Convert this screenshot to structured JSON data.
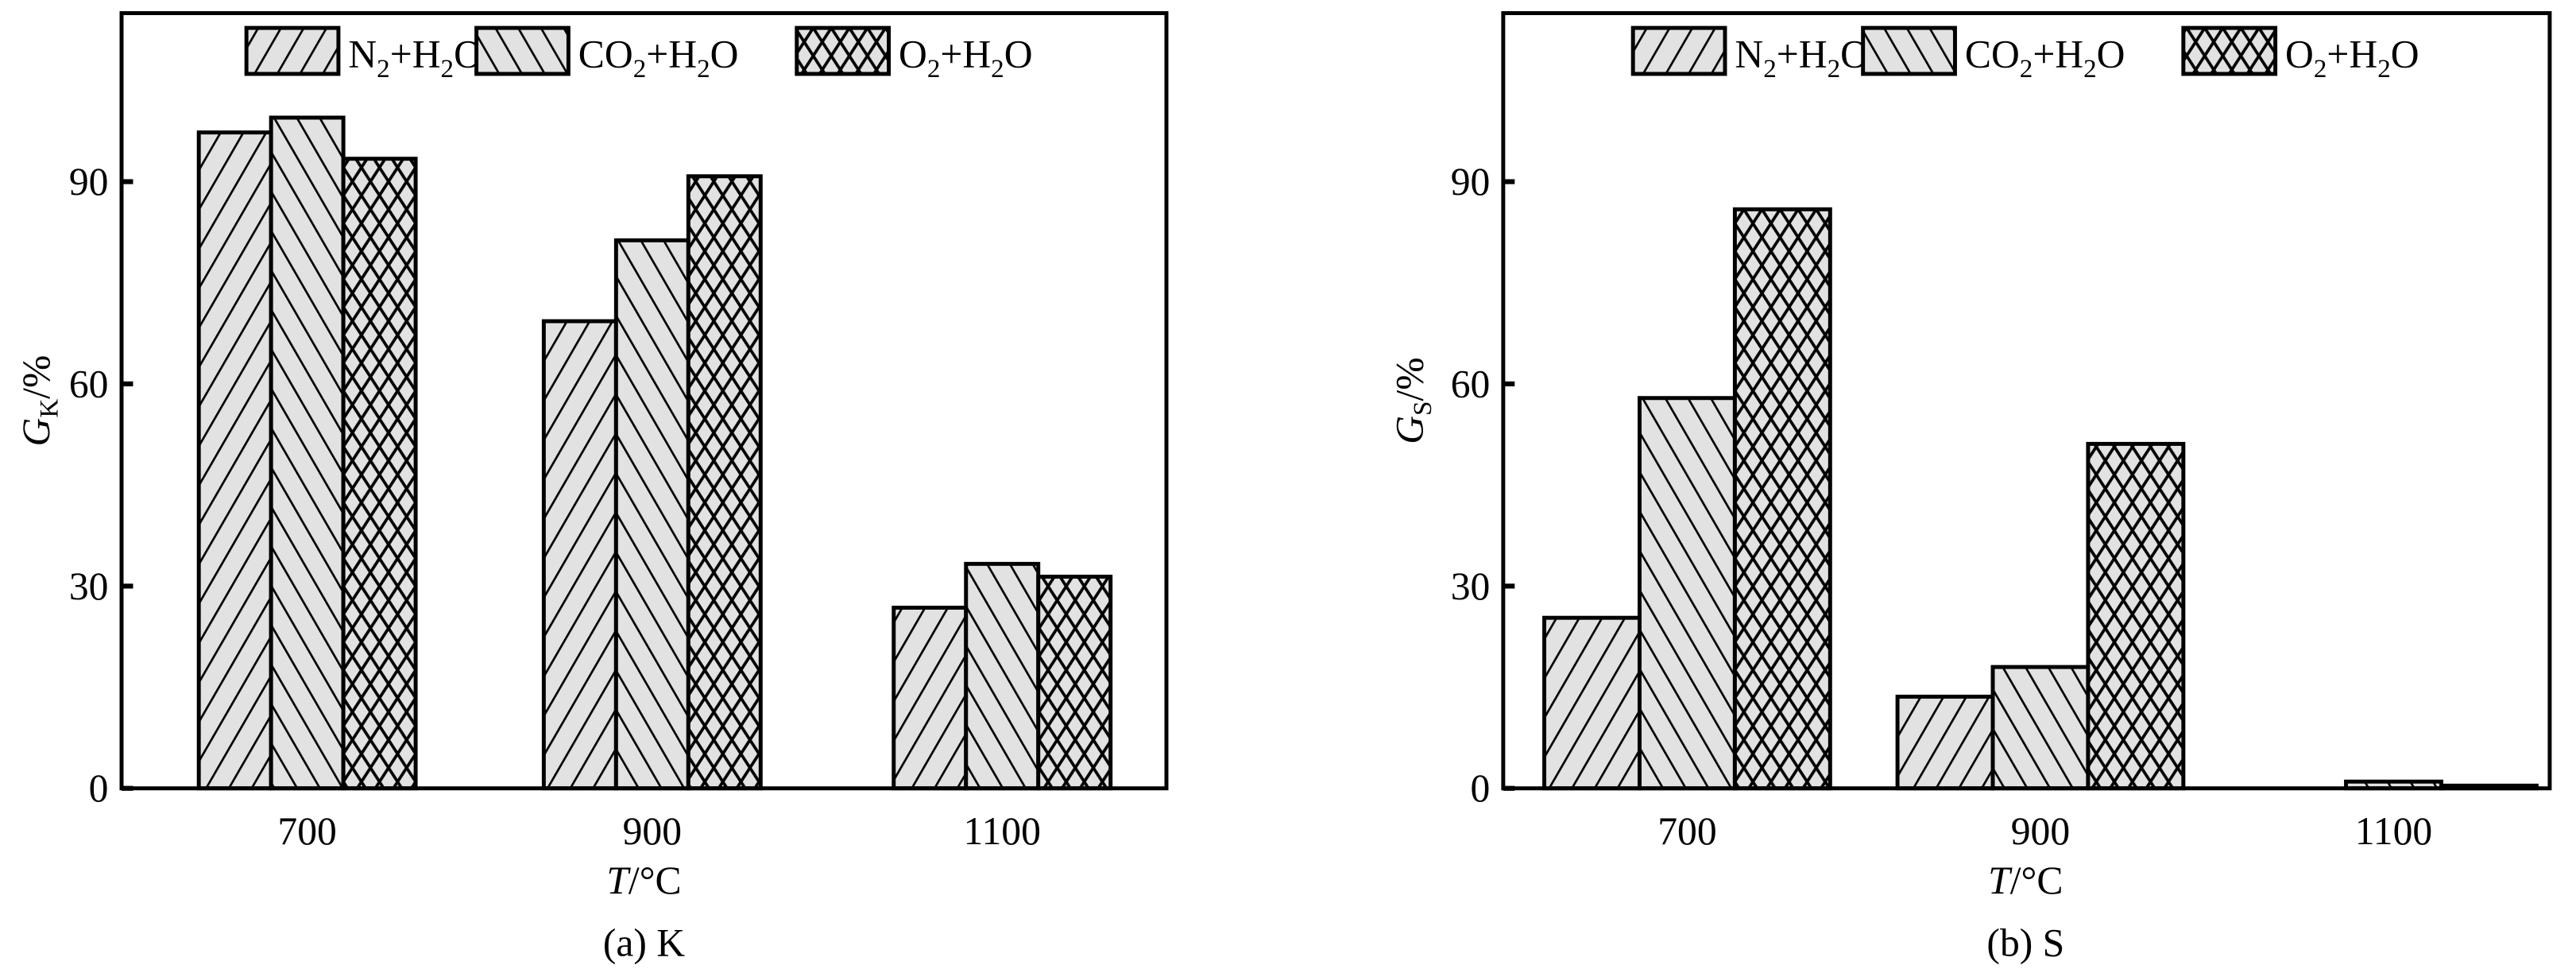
{
  "colors": {
    "bar_fill": "#e2e2e2",
    "stroke": "#000000"
  },
  "chart_data": [
    {
      "type": "bar",
      "caption": "(a) K",
      "ylabel_main": "G",
      "ylabel_sub": "K",
      "ylabel_unit": "/%",
      "xlabel_main": "T",
      "xlabel_unit": "/°C",
      "categories": [
        "700",
        "900",
        "1100"
      ],
      "ylim": [
        0,
        115
      ],
      "yticks": [
        0,
        30,
        60,
        90
      ],
      "grid": false,
      "legend_placement": "top",
      "series": [
        {
          "name": "N2+H2O",
          "pattern": "diagonal-forward",
          "values": [
            97.3,
            69.3,
            26.8
          ]
        },
        {
          "name": "CO2+H2O",
          "pattern": "diagonal-backward",
          "values": [
            99.5,
            81.3,
            33.3
          ]
        },
        {
          "name": "O2+H2O",
          "pattern": "crosshatch",
          "values": [
            93.4,
            90.8,
            31.4
          ]
        }
      ]
    },
    {
      "type": "bar",
      "caption": "(b) S",
      "ylabel_main": "G",
      "ylabel_sub": "S",
      "ylabel_unit": "/%",
      "xlabel_main": "T",
      "xlabel_unit": "/°C",
      "categories": [
        "700",
        "900",
        "1100"
      ],
      "ylim": [
        0,
        115
      ],
      "yticks": [
        0,
        30,
        60,
        90
      ],
      "grid": false,
      "legend_placement": "top",
      "series": [
        {
          "name": "N2+H2O",
          "pattern": "diagonal-forward",
          "values": [
            25.3,
            13.6,
            0
          ]
        },
        {
          "name": "CO2+H2O",
          "pattern": "diagonal-backward",
          "values": [
            57.9,
            18.0,
            1.0
          ]
        },
        {
          "name": "O2+H2O",
          "pattern": "crosshatch",
          "values": [
            85.9,
            51.1,
            0.4
          ]
        }
      ]
    }
  ],
  "legend_labels": [
    {
      "a": "N",
      "sub1": "2",
      "b": "+H",
      "sub2": "2",
      "c": "O"
    },
    {
      "a": "CO",
      "sub1": "2",
      "b": "+H",
      "sub2": "2",
      "c": "O"
    },
    {
      "a": "O",
      "sub1": "2",
      "b": "+H",
      "sub2": "2",
      "c": "O"
    }
  ]
}
